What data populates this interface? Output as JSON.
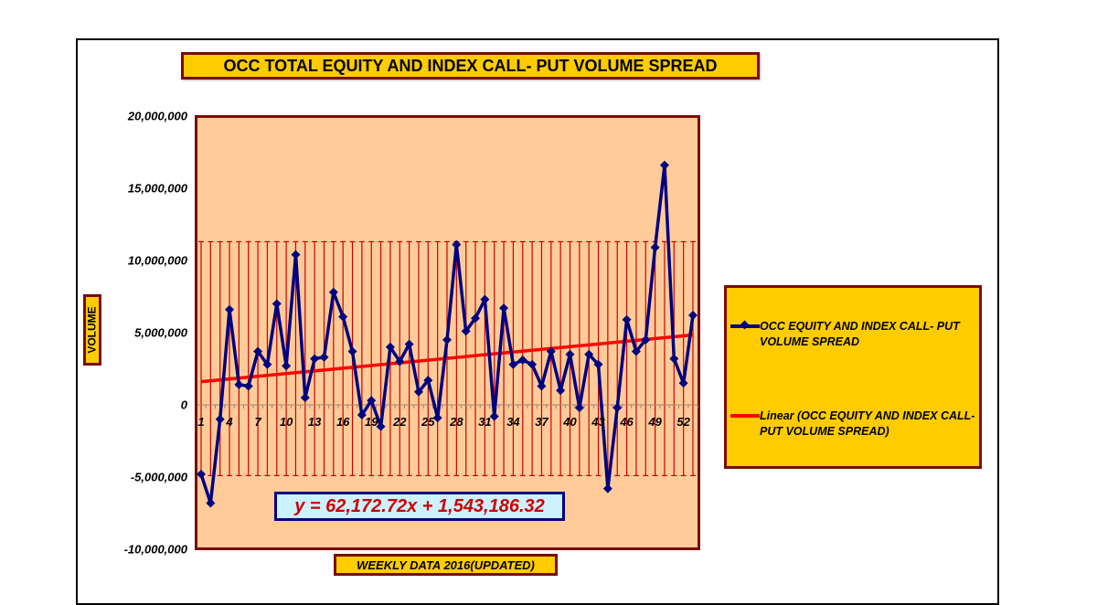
{
  "chart": {
    "title": "OCC TOTAL EQUITY AND INDEX CALL- PUT VOLUME SPREAD",
    "ylabel": "VOLUME",
    "xlabel": "WEEKLY DATA 2016(UPDATED)",
    "equation": "y = 62,172.72x + 1,543,186.32",
    "yticks": [
      "20,000,000",
      "15,000,000",
      "10,000,000",
      "5,000,000",
      "0",
      "-5,000,000",
      "-10,000,000"
    ],
    "xticks": [
      "1",
      "4",
      "7",
      "10",
      "13",
      "16",
      "19",
      "22",
      "25",
      "28",
      "31",
      "34",
      "37",
      "40",
      "43",
      "46",
      "49",
      "52"
    ],
    "legend": {
      "series": "OCC EQUITY AND INDEX CALL- PUT VOLUME SPREAD",
      "trend": "Linear (OCC EQUITY AND INDEX CALL- PUT VOLUME SPREAD)"
    },
    "colors": {
      "series": "#000080",
      "trend": "#ff0000",
      "plot_bg": "#ffcc99",
      "label_bg": "#ffcc00",
      "border": "#7a0a0a",
      "error_bars": "#cc0000",
      "equation_bg": "#ccf2ff",
      "equation_text": "#cc0000"
    }
  },
  "chart_data": {
    "type": "line",
    "title": "OCC TOTAL EQUITY AND INDEX CALL- PUT VOLUME SPREAD",
    "xlabel": "WEEKLY DATA 2016(UPDATED)",
    "ylabel": "VOLUME",
    "ylim": [
      -10000000,
      20000000
    ],
    "ytick_step": 5000000,
    "x": [
      1,
      2,
      3,
      4,
      5,
      6,
      7,
      8,
      9,
      10,
      11,
      12,
      13,
      14,
      15,
      16,
      17,
      18,
      19,
      20,
      21,
      22,
      23,
      24,
      25,
      26,
      27,
      28,
      29,
      30,
      31,
      32,
      33,
      34,
      35,
      36,
      37,
      38,
      39,
      40,
      41,
      42,
      43,
      44,
      45,
      46,
      47,
      48,
      49,
      50,
      51,
      52,
      53
    ],
    "series": [
      {
        "name": "OCC EQUITY AND INDEX CALL- PUT VOLUME SPREAD",
        "values": [
          -4800000,
          -6800000,
          -1000000,
          6600000,
          1400000,
          1300000,
          3700000,
          2800000,
          7000000,
          2700000,
          10400000,
          500000,
          3200000,
          3300000,
          7800000,
          6100000,
          3700000,
          -700000,
          300000,
          -1500000,
          4000000,
          3000000,
          4200000,
          900000,
          1700000,
          -900000,
          4500000,
          11100000,
          5100000,
          6000000,
          7300000,
          -800000,
          6700000,
          2800000,
          3100000,
          2800000,
          1300000,
          3700000,
          1000000,
          3500000,
          -200000,
          3500000,
          2800000,
          -5800000,
          -200000,
          5900000,
          3700000,
          4500000,
          10900000,
          16600000,
          3200000,
          1500000,
          6200000
        ]
      },
      {
        "name": "Linear (OCC EQUITY AND INDEX CALL- PUT VOLUME SPREAD)",
        "type": "trendline",
        "slope": 62172.72,
        "intercept": 1543186.32
      }
    ],
    "error_bars": {
      "upper": 11300000,
      "lower": -4900000
    },
    "annotations": [
      "y = 62,172.72x + 1,543,186.32"
    ],
    "legend_position": "right",
    "grid": false
  }
}
